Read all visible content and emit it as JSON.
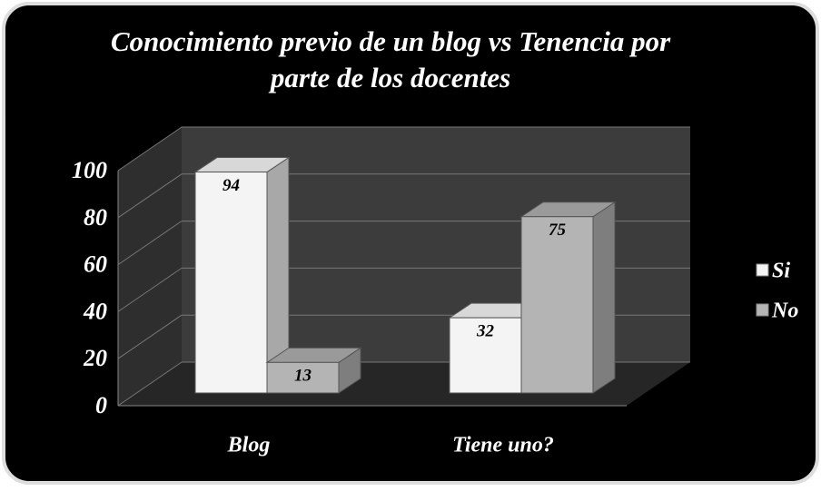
{
  "chart_data": {
    "type": "bar3d",
    "title": "Conocimiento previo de un blog vs Tenencia por parte de los docentes",
    "categories": [
      "Blog",
      "Tiene uno?"
    ],
    "series": [
      {
        "name": "Si",
        "color": "#f4f4f4",
        "values": [
          94,
          32
        ]
      },
      {
        "name": "No",
        "color": "#b4b4b4",
        "values": [
          13,
          75
        ]
      }
    ],
    "ylim": [
      0,
      100
    ],
    "yticks": [
      0,
      20,
      40,
      60,
      80,
      100
    ],
    "grid": true,
    "legend": "right"
  }
}
